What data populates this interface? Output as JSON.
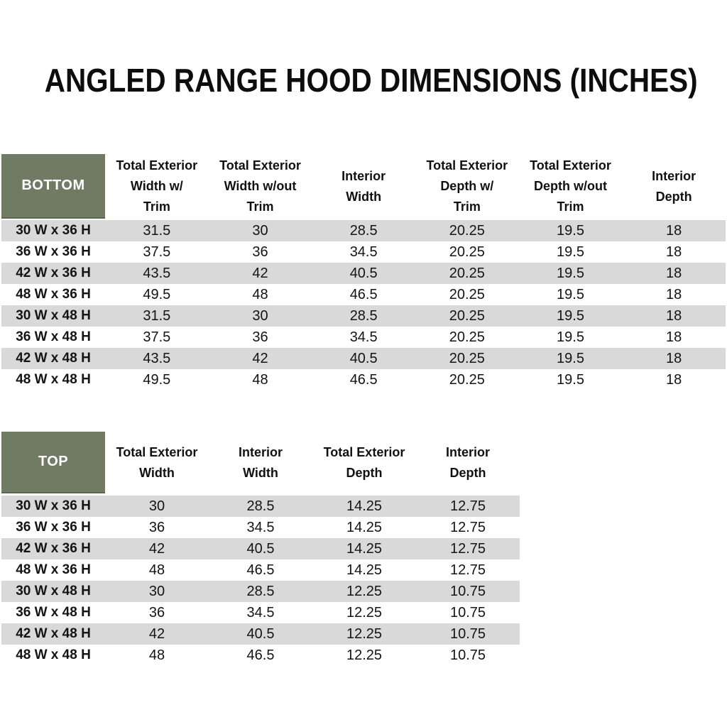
{
  "title": "ANGLED RANGE HOOD DIMENSIONS (INCHES)",
  "colors": {
    "header_badge_green": "#717B64",
    "stripe_gray": "#D9D9D9",
    "badge_text": "#FFFFFF"
  },
  "bottom_table": {
    "header": "BOTTOM",
    "columns": [
      "Total Exterior\nWidth w/\nTrim",
      "Total Exterior\nWidth w/out\nTrim",
      "Interior\nWidth",
      "Total Exterior\nDepth w/\nTrim",
      "Total Exterior\nDepth w/out\nTrim",
      "Interior\nDepth"
    ],
    "rows": [
      {
        "size": "30 W x 36 H",
        "values": [
          "31.5",
          "30",
          "28.5",
          "20.25",
          "19.5",
          "18"
        ]
      },
      {
        "size": "36 W x 36 H",
        "values": [
          "37.5",
          "36",
          "34.5",
          "20.25",
          "19.5",
          "18"
        ]
      },
      {
        "size": "42 W x 36 H",
        "values": [
          "43.5",
          "42",
          "40.5",
          "20.25",
          "19.5",
          "18"
        ]
      },
      {
        "size": "48 W x 36 H",
        "values": [
          "49.5",
          "48",
          "46.5",
          "20.25",
          "19.5",
          "18"
        ]
      },
      {
        "size": "30 W x 48 H",
        "values": [
          "31.5",
          "30",
          "28.5",
          "20.25",
          "19.5",
          "18"
        ]
      },
      {
        "size": "36 W x 48 H",
        "values": [
          "37.5",
          "36",
          "34.5",
          "20.25",
          "19.5",
          "18"
        ]
      },
      {
        "size": "42 W x 48 H",
        "values": [
          "43.5",
          "42",
          "40.5",
          "20.25",
          "19.5",
          "18"
        ]
      },
      {
        "size": "48 W x 48 H",
        "values": [
          "49.5",
          "48",
          "46.5",
          "20.25",
          "19.5",
          "18"
        ]
      }
    ]
  },
  "top_table": {
    "header": "TOP",
    "columns": [
      "Total Exterior\nWidth",
      "Interior\nWidth",
      "Total Exterior\nDepth",
      "Interior\nDepth"
    ],
    "rows": [
      {
        "size": "30 W x 36 H",
        "values": [
          "30",
          "28.5",
          "14.25",
          "12.75"
        ]
      },
      {
        "size": "36 W x 36 H",
        "values": [
          "36",
          "34.5",
          "14.25",
          "12.75"
        ]
      },
      {
        "size": "42 W x 36 H",
        "values": [
          "42",
          "40.5",
          "14.25",
          "12.75"
        ]
      },
      {
        "size": "48 W x 36 H",
        "values": [
          "48",
          "46.5",
          "14.25",
          "12.75"
        ]
      },
      {
        "size": "30 W x 48 H",
        "values": [
          "30",
          "28.5",
          "12.25",
          "10.75"
        ]
      },
      {
        "size": "36 W x 48 H",
        "values": [
          "36",
          "34.5",
          "12.25",
          "10.75"
        ]
      },
      {
        "size": "42 W x 48 H",
        "values": [
          "42",
          "40.5",
          "12.25",
          "10.75"
        ]
      },
      {
        "size": "48 W x 48 H",
        "values": [
          "48",
          "46.5",
          "12.25",
          "10.75"
        ]
      }
    ]
  }
}
